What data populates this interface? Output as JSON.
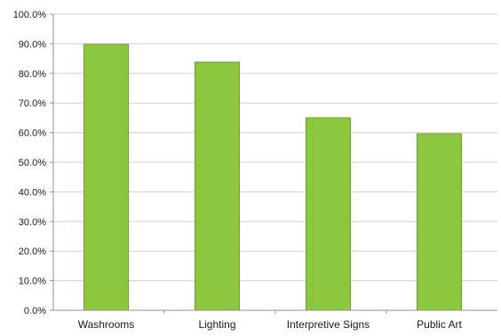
{
  "chart_data": {
    "type": "bar",
    "title": "",
    "xlabel": "",
    "ylabel": "",
    "categories": [
      "Washrooms",
      "Lighting",
      "Interpretive Signs",
      "Public Art"
    ],
    "values": [
      89.8,
      83.8,
      65.0,
      59.6
    ],
    "ylim": [
      0,
      100
    ],
    "yticks": [
      0,
      10,
      20,
      30,
      40,
      50,
      60,
      70,
      80,
      90,
      100
    ],
    "ytick_labels": [
      "0.0%",
      "10.0%",
      "20.0%",
      "30.0%",
      "40.0%",
      "50.0%",
      "60.0%",
      "70.0%",
      "80.0%",
      "90.0%",
      "100.0%"
    ],
    "grid": true,
    "legend": "none",
    "colors": {
      "bar_fill": "#8dc63f",
      "bar_edge": "#6e9e2c",
      "grid": "#d0d0d0",
      "axis": "#909090",
      "text": "#1a1a1a"
    }
  }
}
